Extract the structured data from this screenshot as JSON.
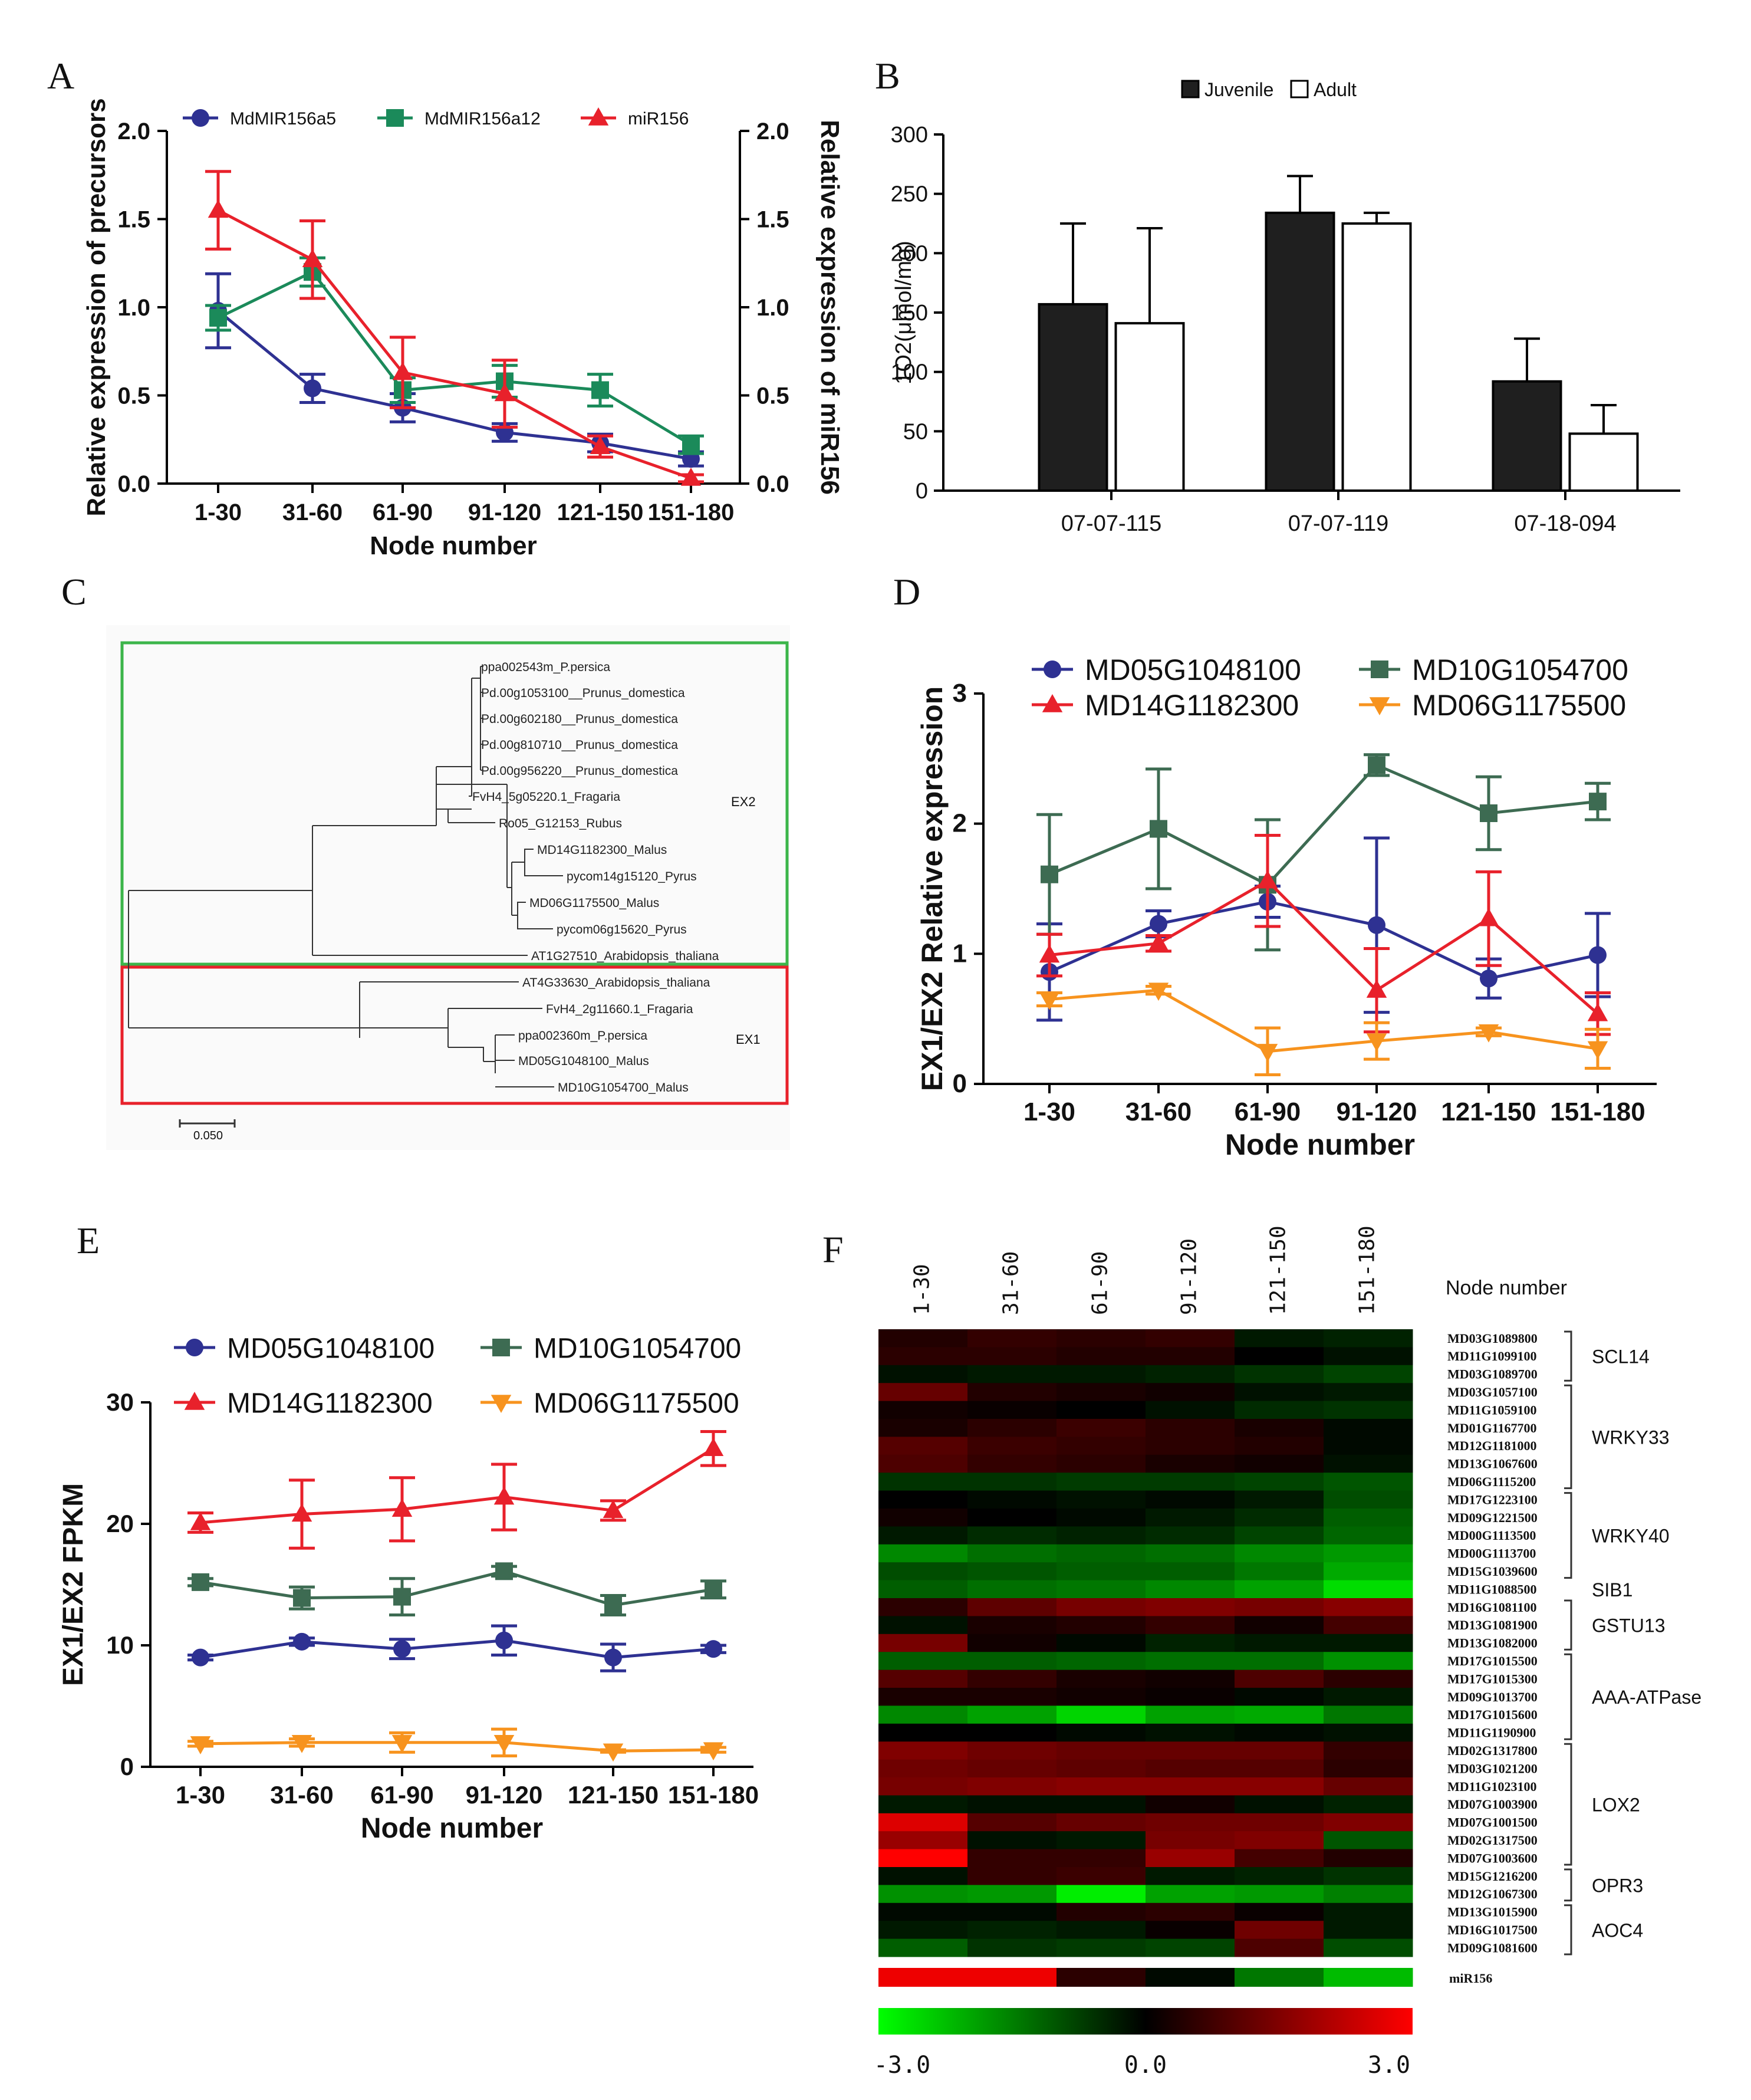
{
  "colors": {
    "blue": "#2e3192",
    "green": "#1b8a5a",
    "red": "#e8212b",
    "darkgreen": "#3d6b52",
    "orange": "#f7931e",
    "frame_green": "#3cb54a",
    "frame_red": "#e8212b"
  },
  "chart_data": [
    {
      "panel": "A",
      "type": "line",
      "categories": [
        "1-30",
        "31-60",
        "61-90",
        "91-120",
        "121-150",
        "151-180"
      ],
      "xlabel": "Node number",
      "ylabel": "Relative expression of precursors",
      "ylabel_right": "Relative expression of miR156",
      "ylim": [
        0,
        2.0
      ],
      "yticks": [
        "0.0",
        "0.5",
        "1.0",
        "1.5",
        "2.0"
      ],
      "series": [
        {
          "name": "MdMIR156a5",
          "marker": "circle",
          "color": "#2e3192",
          "values": [
            0.98,
            0.54,
            0.43,
            0.29,
            0.23,
            0.14
          ],
          "err": [
            0.21,
            0.08,
            0.08,
            0.05,
            0.05,
            0.04
          ]
        },
        {
          "name": "MdMIR156a12",
          "marker": "square",
          "color": "#1b8a5a",
          "values": [
            0.94,
            1.2,
            0.53,
            0.58,
            0.53,
            0.22
          ],
          "err": [
            0.07,
            0.08,
            0.07,
            0.09,
            0.09,
            0.05
          ]
        },
        {
          "name": "miR156",
          "marker": "triangle",
          "color": "#e8212b",
          "values": [
            1.55,
            1.27,
            0.63,
            0.51,
            0.21,
            0.03
          ],
          "err": [
            0.22,
            0.22,
            0.2,
            0.19,
            0.06,
            0.02
          ]
        }
      ]
    },
    {
      "panel": "B",
      "type": "bar",
      "categories": [
        "07-07-115",
        "07-07-119",
        "07-18-094"
      ],
      "ylabel": "1O2(μmol/mg)",
      "ylim": [
        0,
        300
      ],
      "yticks": [
        "0",
        "50",
        "100",
        "150",
        "200",
        "250",
        "300"
      ],
      "series": [
        {
          "name": "Juvenile",
          "color": "#1f1f1f",
          "values": [
            157,
            234,
            92
          ],
          "err": [
            68,
            31,
            36
          ]
        },
        {
          "name": "Adult",
          "color": "#ffffff",
          "values": [
            141,
            225,
            48
          ],
          "err": [
            80,
            9,
            24
          ]
        }
      ]
    },
    {
      "panel": "D",
      "type": "line",
      "categories": [
        "1-30",
        "31-60",
        "61-90",
        "91-120",
        "121-150",
        "151-180"
      ],
      "xlabel": "Node number",
      "ylabel": "EX1/EX2 Relative expression",
      "ylim": [
        0,
        3
      ],
      "yticks": [
        "0",
        "1",
        "2",
        "3"
      ],
      "series": [
        {
          "name": "MD05G1048100",
          "marker": "circle",
          "color": "#2e3192",
          "values": [
            0.86,
            1.23,
            1.4,
            1.22,
            0.81,
            0.99
          ],
          "err": [
            0.37,
            0.1,
            0.12,
            0.67,
            0.15,
            0.32
          ]
        },
        {
          "name": "MD10G1054700",
          "marker": "square",
          "color": "#3d6b52",
          "values": [
            1.61,
            1.96,
            1.53,
            2.45,
            2.08,
            2.17
          ],
          "err": [
            0.46,
            0.46,
            0.5,
            0.08,
            0.28,
            0.14
          ]
        },
        {
          "name": "MD14G1182300",
          "marker": "triangle",
          "color": "#e8212b",
          "values": [
            0.99,
            1.08,
            1.56,
            0.72,
            1.27,
            0.54
          ],
          "err": [
            0.16,
            0.06,
            0.35,
            0.32,
            0.36,
            0.16
          ]
        },
        {
          "name": "MD06G1175500",
          "marker": "triangle-down",
          "color": "#f7931e",
          "values": [
            0.65,
            0.72,
            0.25,
            0.33,
            0.4,
            0.27
          ],
          "err": [
            0.05,
            0.03,
            0.18,
            0.14,
            0.03,
            0.15
          ]
        }
      ]
    },
    {
      "panel": "E",
      "type": "line",
      "categories": [
        "1-30",
        "31-60",
        "61-90",
        "91-120",
        "121-150",
        "151-180"
      ],
      "xlabel": "Node number",
      "ylabel": "EX1/EX2 FPKM",
      "ylim": [
        0,
        30
      ],
      "yticks": [
        "0",
        "10",
        "20",
        "30"
      ],
      "series": [
        {
          "name": "MD05G1048100",
          "marker": "circle",
          "color": "#2e3192",
          "values": [
            9.0,
            10.3,
            9.7,
            10.4,
            9.0,
            9.7
          ],
          "err": [
            0.2,
            0.3,
            0.8,
            1.2,
            1.1,
            0.3
          ]
        },
        {
          "name": "MD10G1054700",
          "marker": "square",
          "color": "#3d6b52",
          "values": [
            15.2,
            13.9,
            14.0,
            16.1,
            13.3,
            14.6
          ],
          "err": [
            0.3,
            0.9,
            1.5,
            0.4,
            0.8,
            0.7
          ]
        },
        {
          "name": "MD14G1182300",
          "marker": "triangle",
          "color": "#e8212b",
          "values": [
            20.1,
            20.8,
            21.2,
            22.2,
            21.1,
            26.2
          ],
          "err": [
            0.8,
            2.8,
            2.6,
            2.7,
            0.8,
            1.4
          ]
        },
        {
          "name": "MD06G1175500",
          "marker": "triangle-down",
          "color": "#f7931e",
          "values": [
            1.9,
            2.0,
            2.0,
            2.0,
            1.3,
            1.4
          ],
          "err": [
            0.2,
            0.3,
            0.8,
            1.1,
            0.1,
            0.2
          ]
        }
      ]
    },
    {
      "panel": "F",
      "type": "heatmap",
      "columns": [
        "1-30",
        "31-60",
        "61-90",
        "91-120",
        "121-150",
        "151-180"
      ],
      "col_axis_label": "Node number",
      "rows": [
        "MD03G1089800",
        "MD11G1099100",
        "MD03G1089700",
        "MD03G1057100",
        "MD11G1059100",
        "MD01G1167700",
        "MD12G1181000",
        "MD13G1067600",
        "MD06G1115200",
        "MD17G1223100",
        "MD09G1221500",
        "MD00G1113500",
        "MD00G1113700",
        "MD15G1039600",
        "MD11G1088500",
        "MD16G1081100",
        "MD13G1081900",
        "MD13G1082000",
        "MD17G1015500",
        "MD17G1015300",
        "MD09G1013700",
        "MD17G1015600",
        "MD11G1190900",
        "MD02G1317800",
        "MD03G1021200",
        "MD11G1023100",
        "MD07G1003900",
        "MD07G1001500",
        "MD02G1317500",
        "MD07G1003600",
        "MD15G1216200",
        "MD12G1067300",
        "MD13G1015900",
        "MD16G1017500",
        "MD09G1081600"
      ],
      "groups": [
        {
          "name": "SCL14",
          "start": 0,
          "end": 2
        },
        {
          "name": "WRKY33",
          "start": 3,
          "end": 8
        },
        {
          "name": "WRKY40",
          "start": 9,
          "end": 13
        },
        {
          "name": "SIB1",
          "start": 14,
          "end": 14
        },
        {
          "name": "GSTU13",
          "start": 15,
          "end": 17
        },
        {
          "name": "AAA-ATPase",
          "start": 18,
          "end": 22
        },
        {
          "name": "LOX2",
          "start": 23,
          "end": 29
        },
        {
          "name": "OPR3",
          "start": 30,
          "end": 31
        },
        {
          "name": "AOC4",
          "start": 32,
          "end": 34
        }
      ],
      "values": [
        [
          0.4,
          0.6,
          0.5,
          0.6,
          -0.3,
          -0.4
        ],
        [
          0.5,
          0.5,
          0.4,
          0.4,
          0.0,
          -0.2
        ],
        [
          -0.2,
          -0.3,
          -0.3,
          -0.4,
          -0.6,
          -0.8
        ],
        [
          1.2,
          0.4,
          0.3,
          0.2,
          -0.2,
          -0.3
        ],
        [
          0.2,
          0.1,
          0.0,
          -0.2,
          -0.5,
          -0.6
        ],
        [
          0.3,
          0.5,
          0.7,
          0.5,
          0.3,
          -0.1
        ],
        [
          1.0,
          0.7,
          0.6,
          0.5,
          0.4,
          -0.1
        ],
        [
          0.9,
          0.6,
          0.5,
          0.3,
          0.2,
          -0.2
        ],
        [
          -0.6,
          -0.6,
          -0.7,
          -0.7,
          -0.8,
          -1.0
        ],
        [
          0.0,
          -0.1,
          -0.2,
          -0.1,
          -0.3,
          -0.9
        ],
        [
          0.2,
          0.0,
          -0.1,
          -0.3,
          -0.5,
          -1.1
        ],
        [
          -0.3,
          -0.5,
          -0.4,
          -0.5,
          -0.8,
          -1.2
        ],
        [
          -1.6,
          -1.3,
          -1.2,
          -1.3,
          -1.6,
          -1.8
        ],
        [
          -0.9,
          -1.0,
          -1.1,
          -1.1,
          -1.4,
          -2.0
        ],
        [
          -1.1,
          -1.3,
          -1.4,
          -1.6,
          -1.9,
          -2.6
        ],
        [
          0.5,
          1.1,
          1.4,
          1.5,
          1.4,
          1.6
        ],
        [
          -0.2,
          0.3,
          0.4,
          0.6,
          0.2,
          0.8
        ],
        [
          1.4,
          0.2,
          -0.1,
          -0.4,
          -0.3,
          -0.3
        ],
        [
          -1.1,
          -1.1,
          -1.2,
          -1.3,
          -1.3,
          -1.7
        ],
        [
          1.0,
          0.6,
          0.3,
          0.2,
          0.9,
          0.5
        ],
        [
          0.3,
          0.3,
          0.2,
          0.1,
          -0.1,
          -0.3
        ],
        [
          -1.6,
          -1.9,
          -2.5,
          -1.9,
          -2.0,
          -1.4
        ],
        [
          0.0,
          0.0,
          -0.1,
          -0.2,
          -0.1,
          -0.2
        ],
        [
          1.5,
          1.3,
          1.2,
          1.2,
          1.2,
          0.6
        ],
        [
          1.3,
          1.2,
          1.1,
          1.0,
          1.0,
          0.5
        ],
        [
          1.4,
          1.5,
          1.6,
          1.6,
          1.6,
          1.2
        ],
        [
          -0.3,
          -0.2,
          -0.2,
          0.2,
          -0.2,
          -0.4
        ],
        [
          2.6,
          1.0,
          1.2,
          1.3,
          1.3,
          1.5
        ],
        [
          1.8,
          -0.2,
          -0.3,
          1.4,
          1.5,
          -1.0
        ],
        [
          3.0,
          0.6,
          0.6,
          1.8,
          0.8,
          0.4
        ],
        [
          -0.2,
          0.6,
          0.7,
          -0.3,
          -0.4,
          -0.6
        ],
        [
          -1.7,
          -1.8,
          -2.8,
          -1.9,
          -1.8,
          -1.5
        ],
        [
          -0.1,
          -0.1,
          0.4,
          0.5,
          0.1,
          -0.3
        ],
        [
          -0.3,
          -0.4,
          -0.3,
          0.1,
          1.3,
          -0.3
        ],
        [
          -1.1,
          -0.6,
          -0.7,
          -0.8,
          0.9,
          -0.9
        ]
      ],
      "mir_row": {
        "label": "miR156",
        "values": [
          2.8,
          2.8,
          0.5,
          -0.1,
          -1.4,
          -2.2
        ]
      },
      "scale": {
        "min": -3.0,
        "max": 3.0,
        "ticks": [
          "-3.0",
          "0.0",
          "3.0"
        ]
      }
    },
    {
      "panel": "C",
      "type": "tree",
      "scale_label": "0.050",
      "leaves": [
        "ppa002543m_P.persica",
        "Pd.00g1053100__Prunus_domestica",
        "Pd.00g602180__Prunus_domestica",
        "Pd.00g810710__Prunus_domestica",
        "Pd.00g956220__Prunus_domestica",
        "FvH4_5g05220.1_Fragaria",
        "Ro05_G12153_Rubus",
        "MD14G1182300_Malus",
        "pycom14g15120_Pyrus",
        "MD06G1175500_Malus",
        "pycom06g15620_Pyrus",
        "AT1G27510_Arabidopsis_thaliana",
        "AT4G33630_Arabidopsis_thaliana",
        "FvH4_2g11660.1_Fragaria",
        "ppa002360m_P.persica",
        "MD05G1048100_Malus",
        "MD10G1054700_Malus"
      ],
      "clades": [
        {
          "name": "EX2"
        },
        {
          "name": "EX1"
        }
      ]
    }
  ],
  "panel_letters": {
    "A": "A",
    "B": "B",
    "C": "C",
    "D": "D",
    "E": "E",
    "F": "F"
  }
}
